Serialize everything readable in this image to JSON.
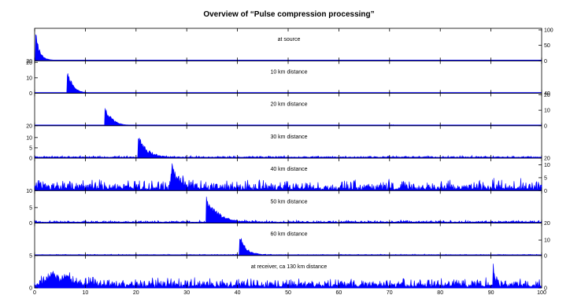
{
  "chart_data": {
    "type": "area",
    "title": "Overview of “Pulse compression processing”",
    "xlabel": "",
    "ylabel": "",
    "xlim": [
      0,
      100
    ],
    "x_ticks": [
      0,
      10,
      20,
      30,
      40,
      50,
      60,
      70,
      80,
      90,
      100
    ],
    "grid": false,
    "line_color": "#0000ff",
    "panels": [
      {
        "label": "at source",
        "ylim": [
          0,
          100
        ],
        "left_ticks": [
          {
            "value": 0,
            "label": "20"
          }
        ],
        "right_ticks": [
          {
            "value": 0,
            "label": "0"
          },
          {
            "value": 50,
            "label": "50"
          },
          {
            "value": 100,
            "label": "100"
          }
        ],
        "peak_x": 0.3,
        "peak_y": 95,
        "spread": 0.7,
        "noise": 0,
        "baseline": 1.0,
        "bumps": [
          {
            "x": 2.2,
            "y": 3
          }
        ]
      },
      {
        "label": "10 km distance",
        "ylim": [
          0,
          20
        ],
        "left_ticks": [
          {
            "value": 0,
            "label": "0"
          },
          {
            "value": 10,
            "label": "10"
          },
          {
            "value": 20,
            "label": "20"
          }
        ],
        "right_ticks": [
          {
            "value": 0,
            "label": "40"
          }
        ],
        "peak_x": 6.5,
        "peak_y": 16,
        "spread": 1.0,
        "noise": 0,
        "baseline": 0.2,
        "bumps": []
      },
      {
        "label": "20 km distance",
        "ylim": [
          0,
          20
        ],
        "left_ticks": [
          {
            "value": 0,
            "label": "20"
          }
        ],
        "right_ticks": [
          {
            "value": 0,
            "label": "0"
          },
          {
            "value": 10,
            "label": "10"
          },
          {
            "value": 20,
            "label": "20"
          }
        ],
        "peak_x": 14.0,
        "peak_y": 13,
        "spread": 1.3,
        "noise": 0,
        "baseline": 0.1,
        "bumps": [
          {
            "x": 70.5,
            "y": 0.6
          },
          {
            "x": 72.0,
            "y": 0.4
          }
        ]
      },
      {
        "label": "30 km distance",
        "ylim": [
          0,
          15
        ],
        "left_ticks": [
          {
            "value": 0,
            "label": "0"
          },
          {
            "value": 5,
            "label": "5"
          },
          {
            "value": 10,
            "label": "10"
          }
        ],
        "right_ticks": [
          {
            "value": 0,
            "label": "20"
          }
        ],
        "peak_x": 20.5,
        "peak_y": 12,
        "spread": 1.5,
        "noise": 0.5,
        "baseline": 0.3,
        "bumps": []
      },
      {
        "label": "40 km distance",
        "ylim": [
          0,
          12
        ],
        "left_ticks": [
          {
            "value": 0,
            "label": "10"
          }
        ],
        "right_ticks": [
          {
            "value": 0,
            "label": "0"
          },
          {
            "value": 5,
            "label": "5"
          },
          {
            "value": 10,
            "label": "10"
          }
        ],
        "peak_x": 27.0,
        "peak_y": 9,
        "spread": 1.5,
        "noise": 2.5,
        "baseline": 0.3,
        "bumps": [
          {
            "x": 1.0,
            "y": 1.2
          }
        ]
      },
      {
        "label": "50 km distance",
        "ylim": [
          0,
          10
        ],
        "left_ticks": [
          {
            "value": 0,
            "label": "0"
          },
          {
            "value": 5,
            "label": "5"
          }
        ],
        "right_ticks": [
          {
            "value": 0,
            "label": "20"
          }
        ],
        "peak_x": 34.0,
        "peak_y": 9,
        "spread": 2.0,
        "noise": 0.4,
        "baseline": 0.2,
        "bumps": []
      },
      {
        "label": "60 km distance",
        "ylim": [
          0,
          20
        ],
        "left_ticks": [
          {
            "value": 0,
            "label": "5"
          }
        ],
        "right_ticks": [
          {
            "value": 0,
            "label": "0"
          },
          {
            "value": 10,
            "label": "10"
          }
        ],
        "peak_x": 40.5,
        "peak_y": 14,
        "spread": 1.2,
        "noise": 0.3,
        "baseline": 0.3,
        "bumps": []
      },
      {
        "label": "at receiver, ca 130 km distance",
        "ylim": [
          0,
          30
        ],
        "left_ticks": [
          {
            "value": 0,
            "label": "0"
          }
        ],
        "right_ticks": [
          {
            "value": 0,
            "label": "0"
          }
        ],
        "peak_x": 90.5,
        "peak_y": 22,
        "spread": 0.3,
        "noise": 5.5,
        "baseline": 1.0,
        "bumps": [
          {
            "x": 3.5,
            "y": 18
          },
          {
            "x": 6.5,
            "y": 12
          },
          {
            "x": 11.0,
            "y": 4
          }
        ]
      }
    ]
  }
}
